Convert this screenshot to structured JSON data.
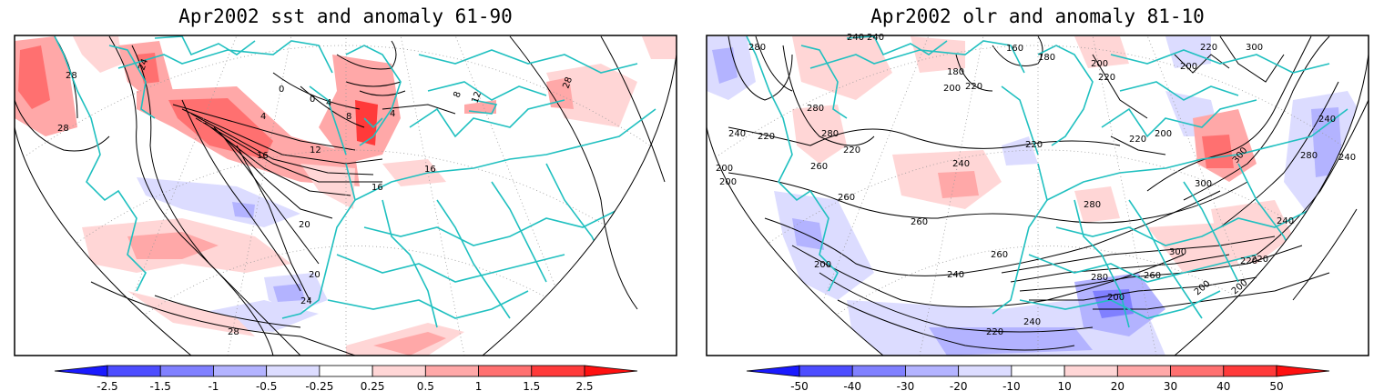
{
  "left_panel": {
    "title": "Apr2002 sst and anomaly 61-90",
    "contour_labels": [
      "28",
      "24",
      "28",
      "0",
      "0",
      "4",
      "4",
      "8",
      "4",
      "12",
      "16",
      "16",
      "16",
      "20",
      "20",
      "24",
      "28",
      "8",
      "12",
      "28"
    ],
    "colorbar": {
      "labels": [
        "-2.5",
        "-1.5",
        "-1",
        "-0.5",
        "-0.25",
        "0.25",
        "0.5",
        "1",
        "1.5",
        "2.5"
      ],
      "colors": [
        "#1a1aff",
        "#4d4dff",
        "#8080ff",
        "#b3b3ff",
        "#dcdcff",
        "#ffffff",
        "#ffd6d6",
        "#ffa8a8",
        "#ff7070",
        "#ff3a3a",
        "#ff1010"
      ]
    }
  },
  "right_panel": {
    "title": "Apr2002 olr and anomaly 81-10",
    "contour_labels": [
      "280",
      "240",
      "160",
      "180",
      "180",
      "200",
      "220",
      "200",
      "220",
      "200",
      "220",
      "300",
      "240",
      "280",
      "280",
      "240",
      "220",
      "220",
      "200",
      "200",
      "260",
      "260",
      "240",
      "220",
      "280",
      "300",
      "300",
      "260",
      "260",
      "300",
      "280",
      "260",
      "240",
      "240",
      "220",
      "200",
      "200",
      "220",
      "200",
      "240",
      "240",
      "280",
      "240",
      "220",
      "220",
      "200",
      "200"
    ],
    "colorbar": {
      "labels": [
        "-50",
        "-40",
        "-30",
        "-20",
        "-10",
        "10",
        "20",
        "30",
        "40",
        "50"
      ],
      "colors": [
        "#1a1aff",
        "#4d4dff",
        "#8080ff",
        "#b3b3ff",
        "#dcdcff",
        "#ffffff",
        "#ffd6d6",
        "#ffa8a8",
        "#ff7070",
        "#ff3a3a",
        "#ff1010"
      ]
    }
  },
  "styles": {
    "coast_color": "#20c0c0",
    "contour_color": "#000000",
    "frame_color": "#000000"
  }
}
